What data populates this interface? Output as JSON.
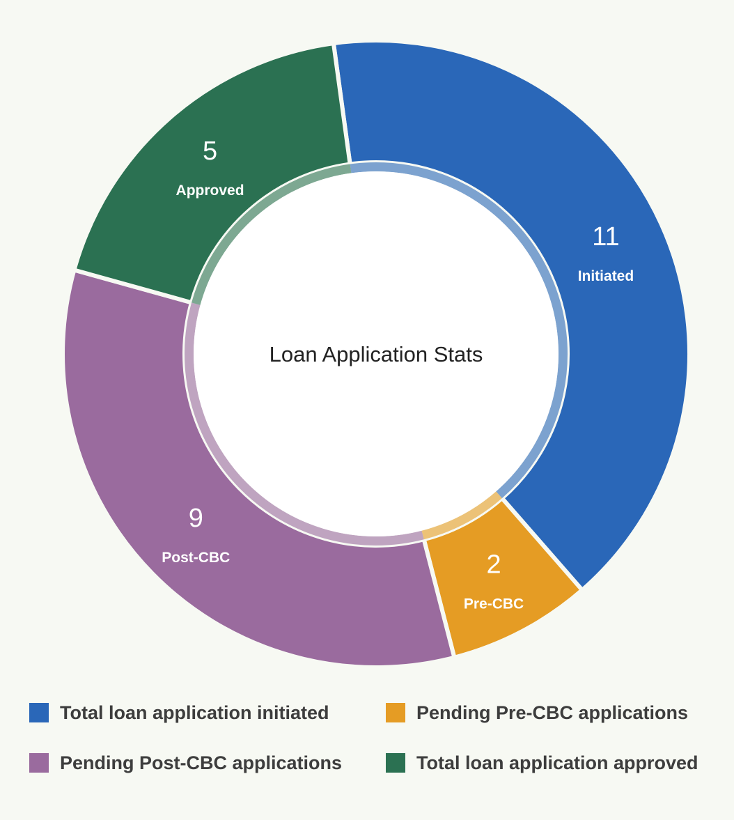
{
  "chart_data": {
    "type": "pie",
    "title": "Loan Application Stats",
    "slices": [
      {
        "value": 11,
        "label": "Initiated",
        "legend": "Total loan application initiated",
        "color": "#2a67b8"
      },
      {
        "value": 2,
        "label": "Pre-CBC",
        "legend": "Pending Pre-CBC applications",
        "color": "#e59c24"
      },
      {
        "value": 9,
        "label": "Post-CBC",
        "legend": "Pending Post-CBC applications",
        "color": "#9a6b9e"
      },
      {
        "value": 5,
        "label": "Approved",
        "legend": "Total loan application approved",
        "color": "#2b7152"
      }
    ],
    "legend_position": "bottom"
  }
}
